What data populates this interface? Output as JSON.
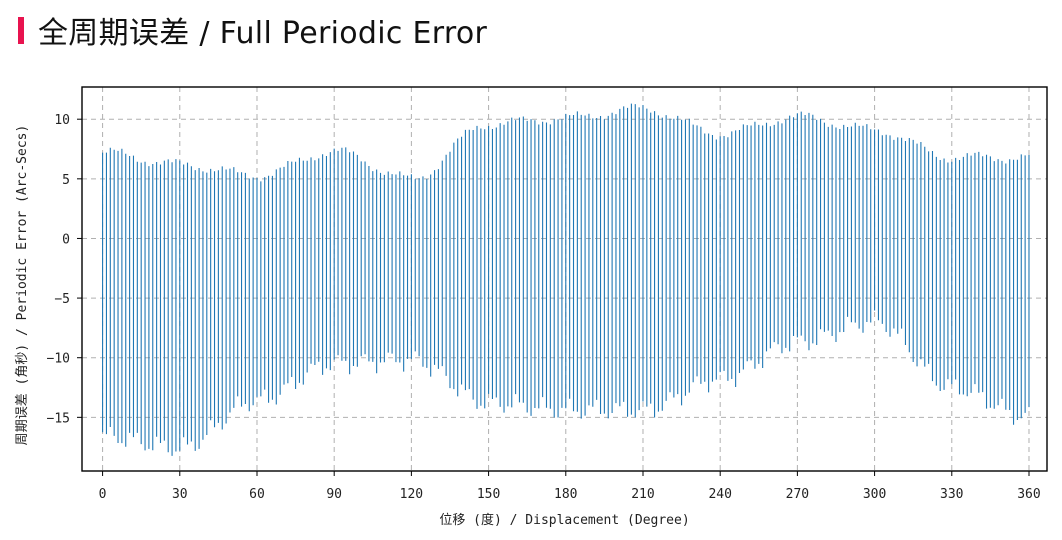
{
  "page": {
    "title": "全周期误差 / Full Periodic Error",
    "accent_color": "#e8134f"
  },
  "chart_data": {
    "type": "bar",
    "style": "range-bars (vertical min-max lines)",
    "series_color": "#1f77b4",
    "xlabel": "位移 (度) / Displacement (Degree)",
    "ylabel": "周期误差 (角秒) / Periodic Error (Arc-Secs)",
    "xlim": [
      -8,
      367
    ],
    "ylim": [
      -19.5,
      12.7
    ],
    "xticks": [
      0,
      30,
      60,
      90,
      120,
      150,
      180,
      210,
      240,
      270,
      300,
      330,
      360
    ],
    "yticks": [
      -15,
      -10,
      -5,
      0,
      5,
      10
    ],
    "ytick_labels": [
      "−15",
      "−10",
      "−5",
      "0",
      "5",
      "10"
    ],
    "grid": true,
    "legend": "none",
    "x": [
      0,
      30,
      60,
      90,
      120,
      150,
      180,
      210,
      240,
      270,
      300,
      330,
      360
    ],
    "upper_envelope": [
      7.2,
      6.2,
      5.3,
      7.3,
      5.0,
      9.6,
      10.1,
      10.9,
      8.8,
      10.2,
      9.1,
      6.8,
      6.8
    ],
    "lower_envelope": [
      -16.6,
      -17.6,
      -13.6,
      -10.5,
      -10.2,
      -13.8,
      -14.4,
      -14.4,
      -11.8,
      -8.7,
      -7.0,
      -12.5,
      -15.0
    ],
    "bar_step": 1.5
  }
}
